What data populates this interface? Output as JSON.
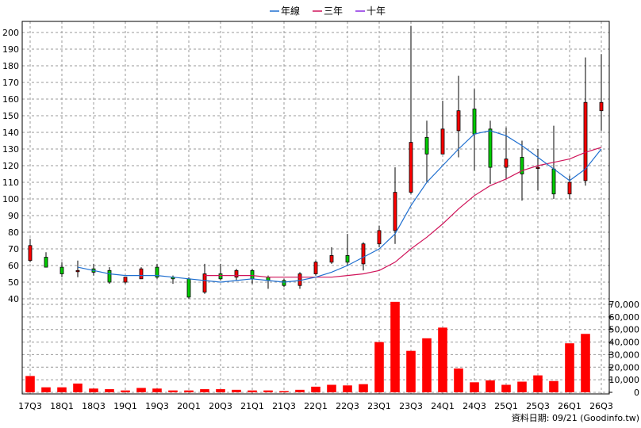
{
  "chart_data": {
    "type": "candlestick+bar",
    "legend": {
      "placement": "top-center",
      "items": [
        {
          "name": "年線",
          "color": "#1f6fd0"
        },
        {
          "name": "三年",
          "color": "#d0145a"
        },
        {
          "name": "十年",
          "color": "#8a2be2"
        }
      ]
    },
    "price_axis": {
      "ticks": [
        40,
        50,
        60,
        70,
        80,
        90,
        100,
        110,
        120,
        130,
        140,
        150,
        160,
        170,
        180,
        190,
        200
      ],
      "ylim": [
        30,
        205
      ]
    },
    "volume_axis": {
      "ticks": [
        "0",
        "10,000",
        "20,000",
        "30,000",
        "40,000",
        "50,000",
        "60,000",
        "70,000"
      ],
      "values": [
        0,
        10000,
        20000,
        30000,
        40000,
        50000,
        60000,
        70000
      ],
      "ylim": [
        0,
        72000
      ]
    },
    "x_tick_labels": [
      "17Q3",
      "18Q1",
      "18Q3",
      "19Q1",
      "19Q3",
      "20Q1",
      "20Q3",
      "21Q1",
      "21Q3",
      "22Q1",
      "22Q3",
      "23Q1",
      "23Q3",
      "24Q1",
      "24Q3",
      "25Q1",
      "25Q3",
      "26Q1",
      "26Q3"
    ],
    "periods": 37,
    "candles": [
      {
        "o": 63,
        "h": 76,
        "l": 62,
        "c": 72
      },
      {
        "o": 65,
        "h": 68,
        "l": 59,
        "c": 59
      },
      {
        "o": 59,
        "h": 62,
        "l": 53,
        "c": 55
      },
      {
        "o": 57,
        "h": 63,
        "l": 53,
        "c": 57
      },
      {
        "o": 58,
        "h": 61,
        "l": 54,
        "c": 56
      },
      {
        "o": 57,
        "h": 59,
        "l": 49,
        "c": 50
      },
      {
        "o": 50,
        "h": 52,
        "l": 49,
        "c": 53
      },
      {
        "o": 52,
        "h": 59,
        "l": 52,
        "c": 58
      },
      {
        "o": 59,
        "h": 61,
        "l": 52,
        "c": 53
      },
      {
        "o": 53,
        "h": 54,
        "l": 49,
        "c": 52
      },
      {
        "o": 52,
        "h": 53,
        "l": 40,
        "c": 41
      },
      {
        "o": 44,
        "h": 61,
        "l": 43,
        "c": 55
      },
      {
        "o": 55,
        "h": 61,
        "l": 51,
        "c": 52
      },
      {
        "o": 53,
        "h": 58,
        "l": 51,
        "c": 57
      },
      {
        "o": 57,
        "h": 58,
        "l": 49,
        "c": 52
      },
      {
        "o": 53,
        "h": 54,
        "l": 46,
        "c": 51
      },
      {
        "o": 51,
        "h": 52,
        "l": 47,
        "c": 48
      },
      {
        "o": 48,
        "h": 56,
        "l": 46,
        "c": 55
      },
      {
        "o": 55,
        "h": 63,
        "l": 54,
        "c": 62
      },
      {
        "o": 62,
        "h": 71,
        "l": 61,
        "c": 66
      },
      {
        "o": 66,
        "h": 79,
        "l": 60,
        "c": 62
      },
      {
        "o": 61,
        "h": 74,
        "l": 57,
        "c": 73
      },
      {
        "o": 73,
        "h": 84,
        "l": 71,
        "c": 81
      },
      {
        "o": 81,
        "h": 119,
        "l": 73,
        "c": 104
      },
      {
        "o": 104,
        "h": 204,
        "l": 103,
        "c": 134
      },
      {
        "o": 137,
        "h": 147,
        "l": 110,
        "c": 127
      },
      {
        "o": 127,
        "h": 159,
        "l": 127,
        "c": 142
      },
      {
        "o": 141,
        "h": 174,
        "l": 125,
        "c": 153
      },
      {
        "o": 154,
        "h": 166,
        "l": 117,
        "c": 139
      },
      {
        "o": 142,
        "h": 147,
        "l": 109,
        "c": 119
      },
      {
        "o": 119,
        "h": 143,
        "l": 112,
        "c": 124
      },
      {
        "o": 125,
        "h": 135,
        "l": 99,
        "c": 115
      },
      {
        "o": 119,
        "h": 130,
        "l": 105,
        "c": 119
      },
      {
        "o": 118,
        "h": 144,
        "l": 100,
        "c": 103
      },
      {
        "o": 103,
        "h": 114,
        "l": 100,
        "c": 110
      },
      {
        "o": 111,
        "h": 185,
        "l": 108,
        "c": 158
      },
      {
        "o": 153,
        "h": 187,
        "l": 141,
        "c": 158
      }
    ],
    "ma_year": [
      null,
      null,
      null,
      59,
      57,
      55,
      54,
      54,
      54,
      53,
      52,
      51,
      50,
      51,
      52,
      51,
      50,
      51,
      53,
      56,
      60,
      65,
      70,
      79,
      96,
      110,
      120,
      130,
      139,
      141,
      138,
      132,
      125,
      118,
      111,
      118,
      130
    ],
    "ma_3yr": [
      null,
      null,
      null,
      null,
      null,
      null,
      null,
      null,
      null,
      null,
      null,
      54,
      54,
      54,
      54,
      53,
      53,
      53,
      53,
      53,
      54,
      55,
      57,
      62,
      70,
      77,
      85,
      94,
      102,
      108,
      112,
      117,
      120,
      122,
      124,
      128,
      131
    ],
    "volume": [
      13000,
      4000,
      4000,
      7000,
      3000,
      2500,
      1500,
      3500,
      3000,
      1500,
      1500,
      2500,
      2500,
      2000,
      1500,
      1500,
      1000,
      2000,
      4500,
      6000,
      5500,
      6500,
      40000,
      72000,
      33000,
      43000,
      51500,
      19000,
      8000,
      9500,
      6000,
      8500,
      13500,
      9000,
      39000,
      46500,
      0
    ],
    "date_note": "資料日期: 09/21  (Goodinfo.tw)"
  }
}
